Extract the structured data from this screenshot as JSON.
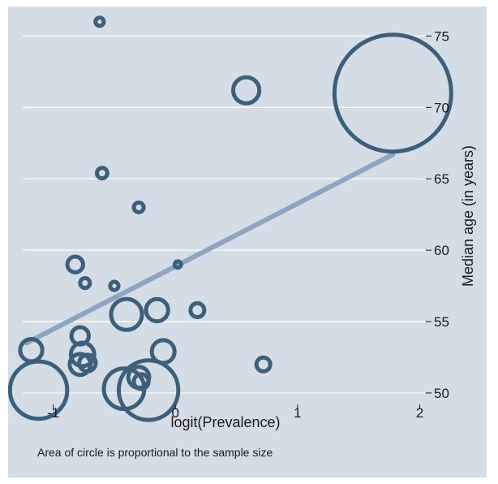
{
  "chart_data": {
    "type": "scatter",
    "title": "",
    "xlabel": "logit(Prevalence)",
    "ylabel": "Median age (in years)",
    "note": "Area of circle is proportional to the sample size",
    "xlim": [
      -1.25,
      2.05
    ],
    "ylim": [
      49.2,
      76.5
    ],
    "x_ticks": [
      -1,
      0,
      1,
      2
    ],
    "x_tick_labels": [
      "-1",
      "0",
      "1",
      "2"
    ],
    "y_ticks": [
      50,
      55,
      60,
      65,
      70,
      75
    ],
    "y_tick_labels": [
      "50",
      "55",
      "60",
      "65",
      "70",
      "75"
    ],
    "grid": "horizontal",
    "y_axis_position": "right",
    "colors": {
      "background": "#d4dde6",
      "marker": "#3e5f7a",
      "fit_line": "#8ea5bd",
      "grid": "#ffffff"
    },
    "points": [
      {
        "x": -0.62,
        "y": 76.0,
        "size": 0.5
      },
      {
        "x": 0.58,
        "y": 71.2,
        "size": 5
      },
      {
        "x": 1.78,
        "y": 71.0,
        "size": 100
      },
      {
        "x": -0.6,
        "y": 65.4,
        "size": 0.8
      },
      {
        "x": -0.3,
        "y": 63.0,
        "size": 0.7
      },
      {
        "x": -0.82,
        "y": 59.0,
        "size": 1.8
      },
      {
        "x": 0.02,
        "y": 59.0,
        "size": 0.3
      },
      {
        "x": -0.74,
        "y": 57.7,
        "size": 0.7
      },
      {
        "x": -0.5,
        "y": 57.5,
        "size": 0.5
      },
      {
        "x": -0.4,
        "y": 55.5,
        "size": 7
      },
      {
        "x": -0.15,
        "y": 55.8,
        "size": 3.6
      },
      {
        "x": 0.18,
        "y": 55.8,
        "size": 1.4
      },
      {
        "x": -0.78,
        "y": 54.0,
        "size": 2.2
      },
      {
        "x": -1.18,
        "y": 53.0,
        "size": 3.6
      },
      {
        "x": -0.76,
        "y": 52.7,
        "size": 4
      },
      {
        "x": -0.1,
        "y": 52.9,
        "size": 3.8
      },
      {
        "x": -0.78,
        "y": 52.0,
        "size": 3.2
      },
      {
        "x": -0.72,
        "y": 52.1,
        "size": 2
      },
      {
        "x": 0.72,
        "y": 52.0,
        "size": 1.4
      },
      {
        "x": -0.3,
        "y": 51.1,
        "size": 3.2
      },
      {
        "x": -0.28,
        "y": 50.8,
        "size": 1.6
      },
      {
        "x": -1.12,
        "y": 50.2,
        "size": 24
      },
      {
        "x": -0.42,
        "y": 50.3,
        "size": 12
      },
      {
        "x": -0.22,
        "y": 50.2,
        "size": 26
      }
    ],
    "fit_line": {
      "x": [
        -1.22,
        1.78
      ],
      "y": [
        53.5,
        66.7
      ]
    }
  }
}
